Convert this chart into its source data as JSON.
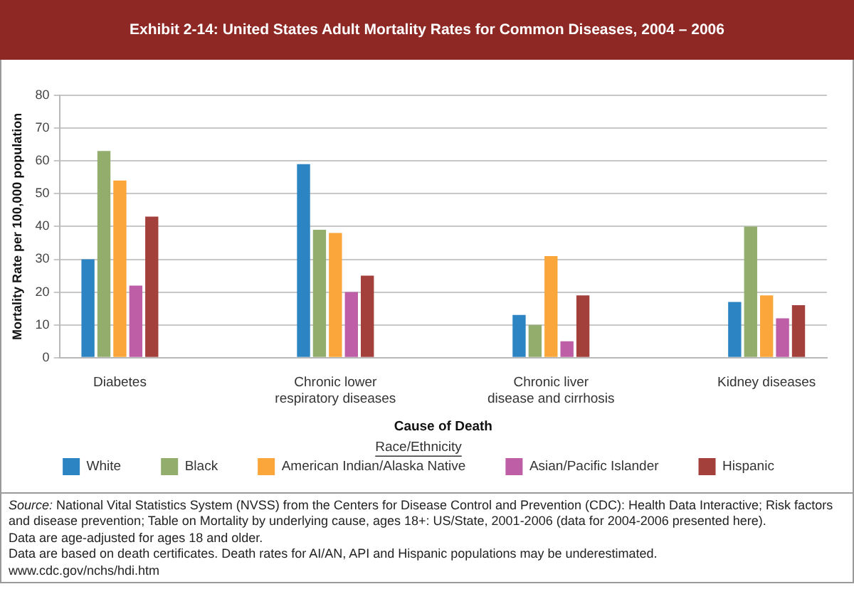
{
  "chart_data": {
    "type": "bar",
    "title": "Exhibit 2-14: United States Adult Mortality Rates for Common Diseases, 2004 – 2006",
    "xlabel": "Cause of Death",
    "ylabel": "Mortality Rate per 100,000 population",
    "legend_title": "Race/Ethnicity",
    "categories": [
      "Diabetes",
      "Chronic lower respiratory diseases",
      "Chronic liver disease and cirrhosis",
      "Kidney diseases"
    ],
    "series": [
      {
        "name": "White",
        "color": "#2c84c2",
        "values": [
          30,
          59,
          13,
          17
        ]
      },
      {
        "name": "Black",
        "color": "#93ae6c",
        "values": [
          63,
          39,
          10,
          40
        ]
      },
      {
        "name": "American Indian/Alaska Native",
        "color": "#faa63a",
        "values": [
          54,
          38,
          31,
          19
        ]
      },
      {
        "name": "Asian/Pacific Islander",
        "color": "#bd5ea6",
        "values": [
          22,
          20,
          5,
          12
        ]
      },
      {
        "name": "Hispanic",
        "color": "#a3403b",
        "values": [
          43,
          25,
          19,
          16
        ]
      }
    ],
    "ylim": [
      0,
      80
    ],
    "yticks": [
      0,
      10,
      20,
      30,
      40,
      50,
      60,
      70,
      80
    ],
    "grid": "y",
    "legend": "bottom",
    "annotations": [
      "Source: National Vital Statistics System (NVSS) from the Centers for Disease Control and Prevention (CDC): Health Data Interactive; Risk factors and disease prevention; Table on Mortality by underlying cause, ages 18+: US/State, 2001-2006 (data for 2004-2006 presented here).",
      "Data are age-adjusted for ages 18 and older.",
      "Data are based on death certificates. Death rates for AI/AN, API and Hispanic populations may be underestimated.",
      "www.cdc.gov/nchs/hdi.htm"
    ]
  }
}
